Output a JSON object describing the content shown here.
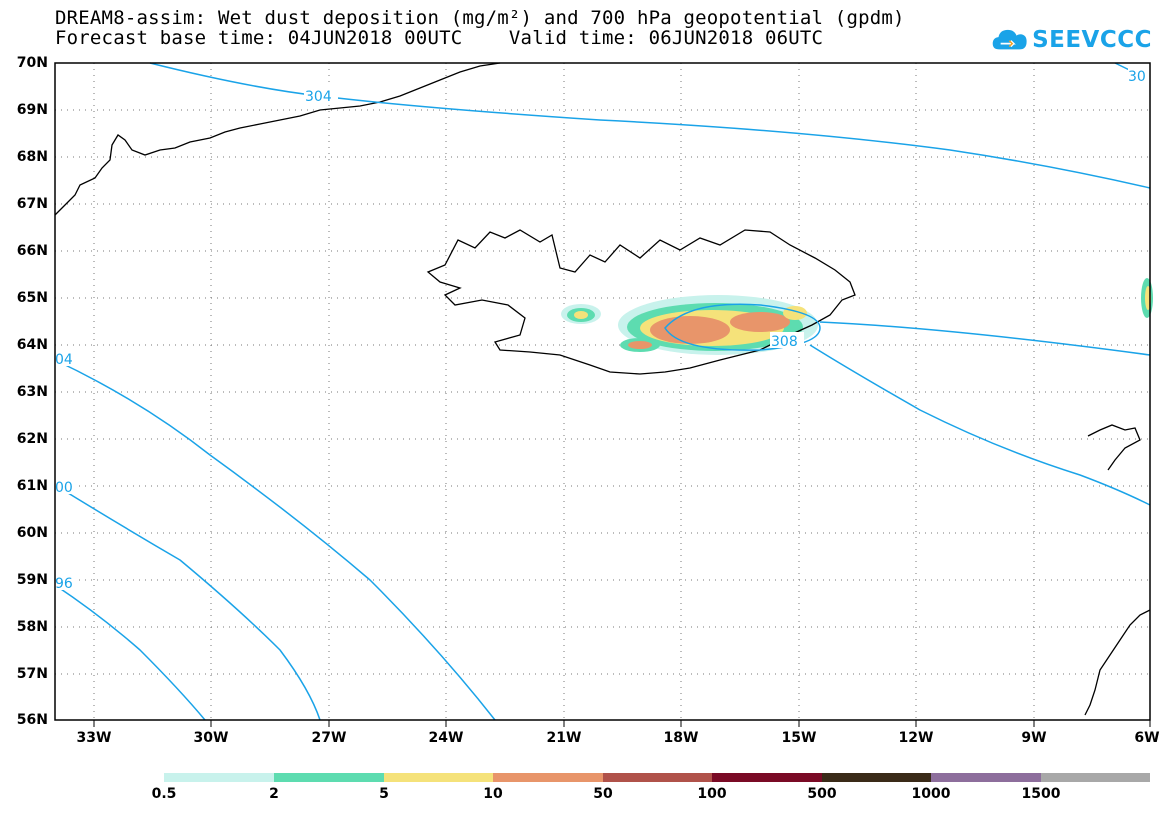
{
  "header": {
    "title_line1": "DREAM8-assim: Wet dust deposition (mg/m²) and 700 hPa geopotential (gpdm)",
    "title_line2": "Forecast base time: 04JUN2018 00UTC    Valid time: 06JUN2018 06UTC"
  },
  "logo": {
    "text": "SEEVCCC",
    "icon": "cloud-icon",
    "color": "#1aa3e8"
  },
  "map": {
    "lat_labels": [
      "70N",
      "69N",
      "68N",
      "67N",
      "66N",
      "65N",
      "64N",
      "63N",
      "62N",
      "61N",
      "60N",
      "59N",
      "58N",
      "57N",
      "56N"
    ],
    "lon_labels": [
      "33W",
      "30W",
      "27W",
      "24W",
      "21W",
      "18W",
      "15W",
      "12W",
      "9W",
      "6W"
    ],
    "contour_color": "#1aa3e8",
    "contour_labels": [
      "304",
      "308",
      "30",
      "04",
      "00",
      "96"
    ]
  },
  "colorbar": {
    "colors": [
      "#c8f2ec",
      "#5ddcb0",
      "#f5e27a",
      "#e8956a",
      "#b0524a",
      "#7a0a25",
      "#3a2a18",
      "#8d6e9c",
      "#a8a8a8"
    ],
    "labels": [
      "0.5",
      "2",
      "5",
      "10",
      "50",
      "100",
      "500",
      "1000",
      "1500"
    ]
  }
}
